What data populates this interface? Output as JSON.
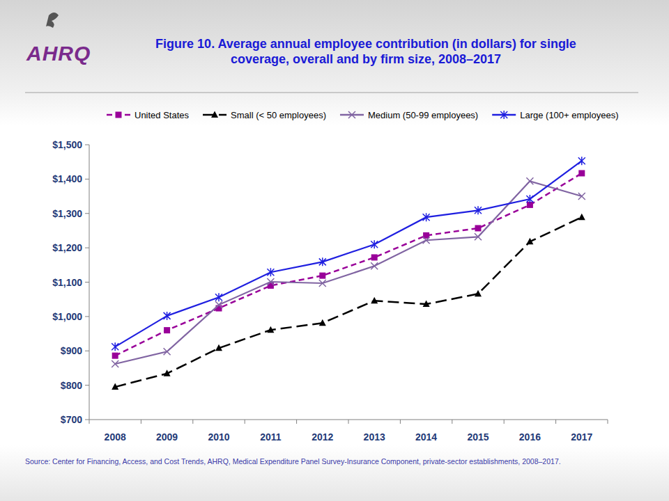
{
  "chart_data": {
    "type": "line",
    "title": "Figure 10. Average annual employee contribution (in dollars) for single coverage, overall and by firm size, 2008–2017",
    "logo_text": "AHRQ",
    "source": "Source: Center for Financing, Access, and Cost Trends, AHRQ, Medical Expenditure Panel Survey-Insurance Component, private-sector establishments, 2008–2017.",
    "categories": [
      "2008",
      "2009",
      "2010",
      "2011",
      "2012",
      "2013",
      "2014",
      "2015",
      "2016",
      "2017"
    ],
    "series": [
      {
        "name": "United States",
        "color": "#990099",
        "marker": "square",
        "line_style": "dashed",
        "values": [
          886,
          960,
          1024,
          1090,
          1119,
          1172,
          1236,
          1257,
          1325,
          1417
        ]
      },
      {
        "name": "Small (< 50 employees)",
        "color": "#000000",
        "marker": "triangle",
        "line_style": "longdash",
        "values": [
          795,
          834,
          908,
          961,
          981,
          1046,
          1036,
          1066,
          1218,
          1289
        ]
      },
      {
        "name": "Medium (50-99 employees)",
        "color": "#8064a2",
        "marker": "x",
        "line_style": "solid",
        "values": [
          862,
          898,
          1034,
          1101,
          1097,
          1147,
          1222,
          1232,
          1394,
          1350
        ]
      },
      {
        "name": "Large (100+ employees)",
        "color": "#1f1fe0",
        "marker": "star",
        "line_style": "solid",
        "values": [
          912,
          1002,
          1056,
          1129,
          1159,
          1210,
          1289,
          1309,
          1342,
          1453
        ]
      }
    ],
    "ylim": [
      700,
      1500
    ],
    "yticks": [
      {
        "value": 700,
        "label": "$700"
      },
      {
        "value": 800,
        "label": "$800"
      },
      {
        "value": 900,
        "label": "$900"
      },
      {
        "value": 1000,
        "label": "$1,000"
      },
      {
        "value": 1100,
        "label": "$1,100"
      },
      {
        "value": 1200,
        "label": "$1,200"
      },
      {
        "value": 1300,
        "label": "$1,300"
      },
      {
        "value": 1400,
        "label": "$1,400"
      },
      {
        "value": 1500,
        "label": "$1,500"
      }
    ],
    "grid": false,
    "legend": "top"
  }
}
